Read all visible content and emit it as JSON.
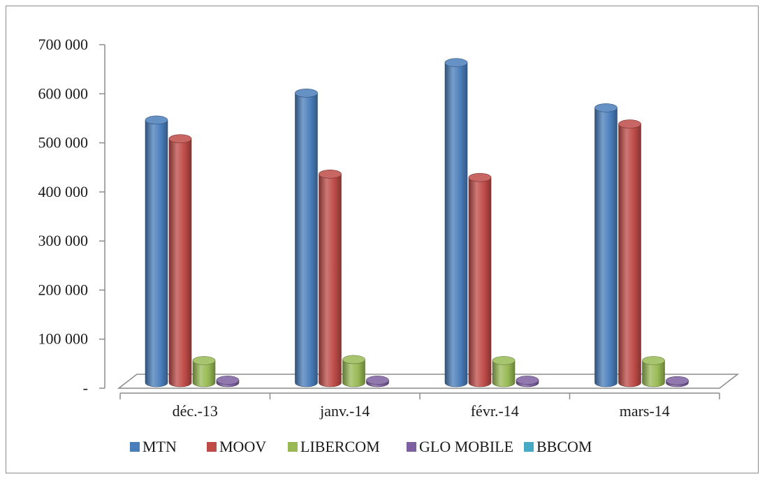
{
  "chart_data": {
    "type": "bar",
    "title": "",
    "xlabel": "",
    "ylabel": "",
    "ylim": [
      0,
      700000
    ],
    "yticks": [
      0,
      100000,
      200000,
      300000,
      400000,
      500000,
      600000,
      700000
    ],
    "ytick_labels": [
      "-",
      "100 000",
      "200 000",
      "300 000",
      "400 000",
      "500 000",
      "600 000",
      "700 000"
    ],
    "categories": [
      "déc.-13",
      "janv.-14",
      "févr.-14",
      "mars-14"
    ],
    "series": [
      {
        "name": "MTN",
        "color": "#4a7ebb",
        "values": [
          535000,
          590000,
          652000,
          560000
        ]
      },
      {
        "name": "MOOV",
        "color": "#be4b48",
        "values": [
          497000,
          425000,
          418000,
          527000
        ]
      },
      {
        "name": "LIBERCOM",
        "color": "#98b954",
        "values": [
          45000,
          47000,
          45000,
          45000
        ]
      },
      {
        "name": "GLO MOBILE",
        "color": "#7d60a0",
        "values": [
          5000,
          5000,
          5000,
          4000
        ]
      },
      {
        "name": "BBCOM",
        "color": "#46aac5",
        "values": [
          0,
          0,
          0,
          0
        ]
      }
    ],
    "grid": false,
    "legend_position": "bottom",
    "style": "3d-cylinder"
  }
}
